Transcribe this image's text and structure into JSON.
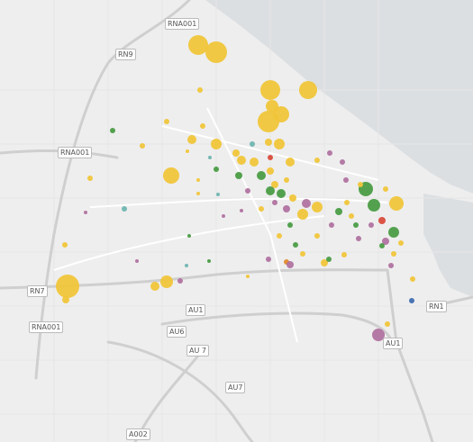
{
  "road_labels": [
    "RNA001",
    "RN9",
    "RNA001",
    "RN7",
    "RNA001",
    "AU1",
    "AU6",
    "AU 7",
    "AU7",
    "A002",
    "RN1",
    "AU1"
  ]
}
